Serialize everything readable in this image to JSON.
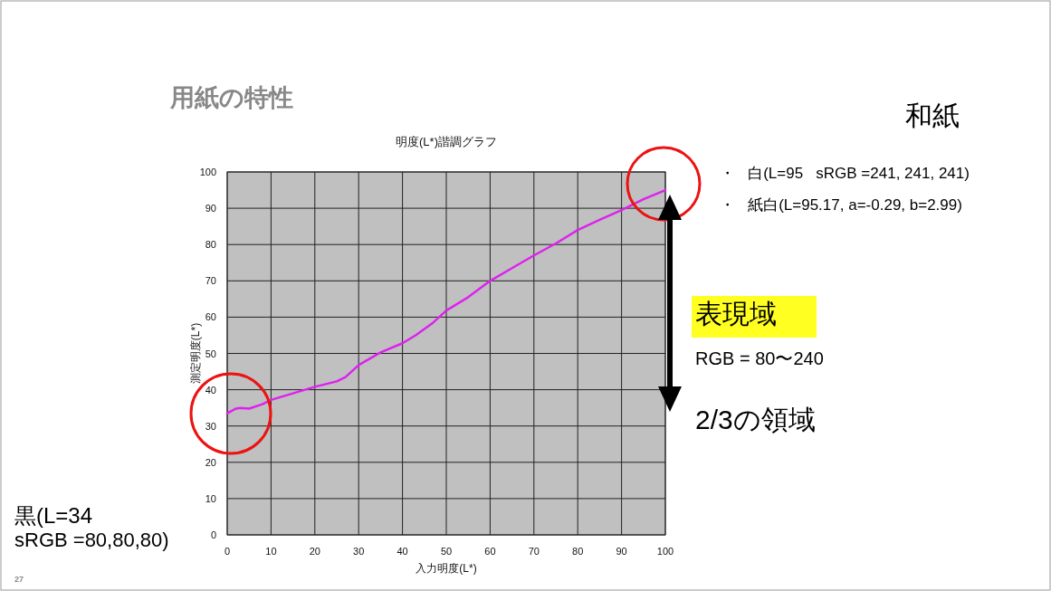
{
  "chart_data": {
    "type": "line",
    "title": "明度(L*)諧調グラフ",
    "subtitle": "用紙の特性",
    "xlabel": "入力明度(L*)",
    "ylabel": "測定明度(L*)",
    "x": [
      0,
      2,
      3,
      5,
      8,
      10,
      15,
      20,
      25,
      27,
      30,
      35,
      40,
      43,
      47,
      50,
      55,
      60,
      65,
      70,
      75,
      80,
      85,
      90,
      95,
      100
    ],
    "series": [
      {
        "color": "#dd22ee",
        "values": [
          33.5,
          34.8,
          35,
          34.8,
          36,
          37.2,
          39,
          40.8,
          42.3,
          43.5,
          46.8,
          50.3,
          52.8,
          55,
          58.5,
          61.8,
          65.5,
          70,
          73.5,
          77,
          80.3,
          84,
          86.8,
          89.5,
          92.5,
          95
        ]
      }
    ],
    "xlim": [
      0,
      100
    ],
    "ylim": [
      0,
      100
    ],
    "xticks": [
      0,
      10,
      20,
      30,
      40,
      50,
      60,
      70,
      80,
      90,
      100
    ],
    "yticks": [
      0,
      10,
      20,
      30,
      40,
      50,
      60,
      70,
      80,
      90,
      100
    ],
    "grid": true,
    "annotations": [
      "和紙",
      "・   白(L=95   sRGB =241, 241, 241)",
      "・   紙白(L=95.17, a=-0.29, b=2.99)",
      "表現域",
      "RGB = 80〜240",
      "2/3の領域",
      "黒(L=34",
      "sRGB =80,80,80)",
      "27"
    ]
  }
}
